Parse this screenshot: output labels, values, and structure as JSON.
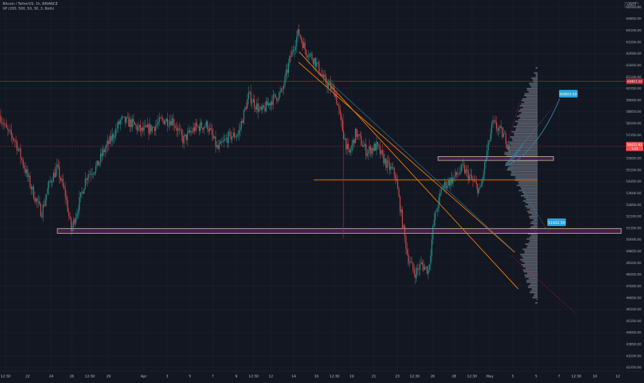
{
  "legend": {
    "symbol": "Bitcoin / TetherUS, 1h, BINANCE",
    "indicator": "VP (200, 500, 50, 30, 2, Both)"
  },
  "currency_label": "USDT",
  "colors": {
    "background": "#131722",
    "grid": "#1e2230",
    "up_candle": "#26a69a",
    "down_candle": "#ef5350",
    "trendline": "#f57c00",
    "channel_teal": "#2b6f86",
    "horizontal_red": "#b22833",
    "zone_fill": "#4a2050",
    "zone_border": "#f3e5b5",
    "projection_fill": "#3a7fa8",
    "profile_fill": "#8a8f9c",
    "target_badge": "#29a4dc"
  },
  "chart_data": {
    "type": "candlestick",
    "title": "Bitcoin / TetherUS, 1h, BINANCE",
    "x_ticks": [
      "12:30",
      "22",
      "24",
      "26",
      "12:30",
      "29",
      "Apr",
      "3",
      "5",
      "7",
      "9",
      "12:30",
      "12",
      "14",
      "16",
      "12:30",
      "19",
      "21",
      "23",
      "12:30",
      "26",
      "28",
      "12:30",
      "May",
      "3",
      "5",
      "7",
      "12:30",
      "10",
      "12"
    ],
    "y_ticks": [
      42350,
      43100,
      43850,
      44600,
      45350,
      46100,
      46850,
      47600,
      48350,
      49100,
      49850,
      50600,
      51350,
      52100,
      52850,
      53600,
      54350,
      55100,
      55850,
      56600,
      57350,
      58100,
      58850,
      59600,
      60350,
      61100,
      61850,
      62600,
      63350,
      64100,
      64850,
      65600
    ],
    "ylim": [
      42100,
      66050
    ],
    "price_path": [
      [
        0,
        58600
      ],
      [
        10,
        57600
      ],
      [
        22,
        57000
      ],
      [
        35,
        55300
      ],
      [
        48,
        53600
      ],
      [
        60,
        52300
      ],
      [
        72,
        54300
      ],
      [
        83,
        55200
      ],
      [
        95,
        53400
      ],
      [
        103,
        51200
      ],
      [
        111,
        52400
      ],
      [
        125,
        54700
      ],
      [
        140,
        55300
      ],
      [
        150,
        56300
      ],
      [
        160,
        57000
      ],
      [
        175,
        58300
      ],
      [
        190,
        58100
      ],
      [
        205,
        57600
      ],
      [
        220,
        57800
      ],
      [
        235,
        58300
      ],
      [
        250,
        58300
      ],
      [
        265,
        57000
      ],
      [
        282,
        57800
      ],
      [
        300,
        58000
      ],
      [
        315,
        56400
      ],
      [
        330,
        57200
      ],
      [
        345,
        57400
      ],
      [
        360,
        59900
      ],
      [
        378,
        58800
      ],
      [
        393,
        59600
      ],
      [
        408,
        60100
      ],
      [
        420,
        62300
      ],
      [
        432,
        64000
      ],
      [
        442,
        62800
      ],
      [
        455,
        62200
      ],
      [
        470,
        60800
      ],
      [
        485,
        60100
      ],
      [
        495,
        57800
      ],
      [
        505,
        56000
      ],
      [
        515,
        57500
      ],
      [
        530,
        56300
      ],
      [
        545,
        56600
      ],
      [
        560,
        55400
      ],
      [
        572,
        54800
      ],
      [
        582,
        51800
      ],
      [
        590,
        49500
      ],
      [
        600,
        48400
      ],
      [
        610,
        49000
      ],
      [
        620,
        48600
      ],
      [
        628,
        51800
      ],
      [
        640,
        54000
      ],
      [
        655,
        54500
      ],
      [
        670,
        55200
      ],
      [
        685,
        54300
      ],
      [
        695,
        53700
      ],
      [
        705,
        56300
      ],
      [
        713,
        58100
      ],
      [
        722,
        57700
      ],
      [
        730,
        57200
      ],
      [
        738,
        56700
      ]
    ],
    "annotations": {
      "current_price": "56621.92",
      "current_price_sub": "1:25",
      "red_level_label": "60803.50",
      "upper_target": "60803.50",
      "lower_target": "51422.50"
    },
    "levels": {
      "red_upper": 60803.5,
      "red_lower": 56621.92,
      "orange_horizontal": 54450
    },
    "zones": [
      {
        "name": "support-zone-lower",
        "y1": 51300,
        "y2": 51000
      },
      {
        "name": "resistance-zone-upper",
        "y1": 55950,
        "y2": 55700
      }
    ]
  }
}
